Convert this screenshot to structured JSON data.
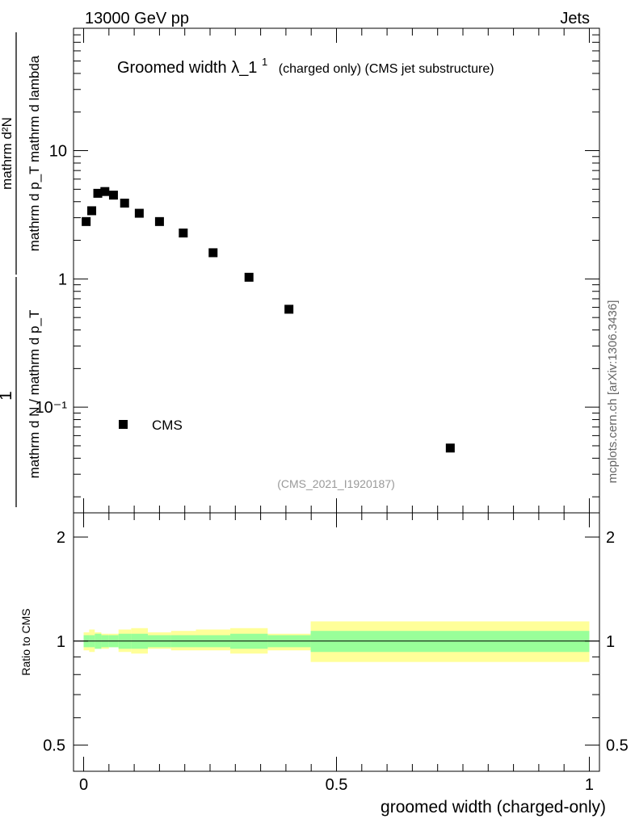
{
  "header": {
    "left": "13000 GeV pp",
    "right": "Jets",
    "side_label": "mcplots.cern.ch [arXiv:1306.3436]"
  },
  "chart_data": [
    {
      "type": "scatter",
      "title_main": "Groomed width",
      "title_symbol": "λ_1",
      "title_superscript": "1",
      "title_suffix": "(charged only) (CMS jet substructure)",
      "ylabel": {
        "prefactor_numerator": "1",
        "prefactor_denominator": "mathrm d N / mathrm d p_T",
        "fraction_numerator": "mathrm d²N",
        "fraction_denominator": "mathrm d p_T mathrm d lambda"
      },
      "yscale": "log",
      "ylim": [
        0.015,
        90
      ],
      "xlim": [
        -0.02,
        1.02
      ],
      "y_tick_labels": [
        "10⁻¹",
        "1",
        "10"
      ],
      "legend": {
        "position": "bottom-left",
        "label": "CMS"
      },
      "watermark": "(CMS_2021_I1920187)",
      "series": [
        {
          "name": "CMS",
          "x": [
            0.005,
            0.016,
            0.028,
            0.042,
            0.059,
            0.081,
            0.11,
            0.15,
            0.197,
            0.256,
            0.327,
            0.406,
            0.725
          ],
          "y": [
            2.8,
            3.4,
            4.65,
            4.8,
            4.5,
            3.9,
            3.25,
            2.8,
            2.28,
            1.6,
            1.03,
            0.58,
            0.048
          ]
        }
      ]
    },
    {
      "type": "area",
      "ylabel": "Ratio to CMS",
      "xlabel": "groomed width (charged-only)",
      "ylim": [
        0.42,
        2.35
      ],
      "xlim": [
        -0.02,
        1.02
      ],
      "x_tick_labels": [
        "0",
        "0.5",
        "1"
      ],
      "y_tick_labels": [
        "0.5",
        "1",
        "2"
      ],
      "reference_line": 1.0,
      "bands": {
        "bin_edges": [
          0.0,
          0.011,
          0.022,
          0.035,
          0.05,
          0.069,
          0.094,
          0.127,
          0.173,
          0.222,
          0.29,
          0.364,
          0.449,
          1.0
        ],
        "inner_low": [
          0.96,
          0.96,
          0.95,
          0.96,
          0.96,
          0.95,
          0.95,
          0.96,
          0.96,
          0.96,
          0.95,
          0.96,
          0.93
        ],
        "inner_high": [
          1.04,
          1.04,
          1.05,
          1.04,
          1.04,
          1.05,
          1.05,
          1.04,
          1.04,
          1.04,
          1.05,
          1.04,
          1.07
        ],
        "outer_low": [
          0.94,
          0.93,
          0.95,
          0.95,
          0.96,
          0.93,
          0.92,
          0.95,
          0.94,
          0.94,
          0.92,
          0.94,
          0.87
        ],
        "outer_high": [
          1.06,
          1.08,
          1.06,
          1.05,
          1.05,
          1.08,
          1.09,
          1.06,
          1.07,
          1.08,
          1.09,
          1.05,
          1.14
        ]
      },
      "colors": {
        "inner": "#99ff99",
        "outer": "#ffff99"
      }
    }
  ]
}
